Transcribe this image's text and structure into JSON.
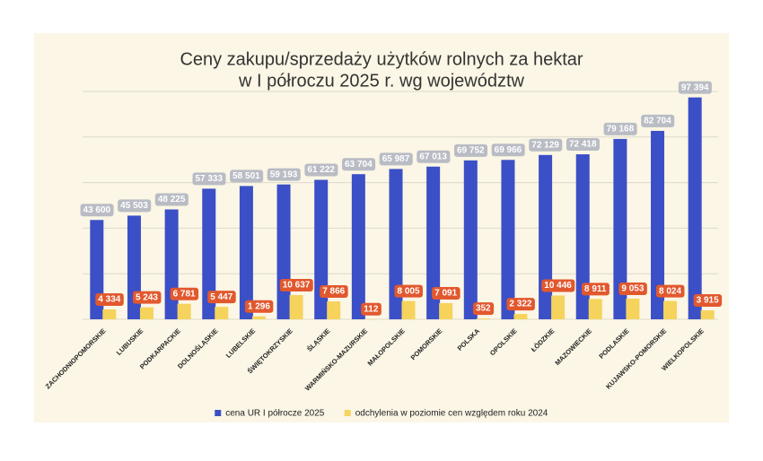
{
  "chart_data": {
    "type": "bar",
    "title": "Ceny zakupu/sprzedaży użytków rolnych za hektar",
    "subtitle": "w I półroczu 2025 r. wg województw",
    "categories": [
      "ZACHODNIOPOMORSKIE",
      "LUBUSKIE",
      "PODKARPACKIE",
      "DOLNOŚLĄSKIE",
      "LUBELSKIE",
      "ŚWIĘTOKRZYSKIE",
      "ŚLĄSKIE",
      "WARMIŃSKO-MAZURSKIE",
      "MAŁOPOLSKIE",
      "POMORSKIE",
      "POLSKA",
      "OPOLSKIE",
      "ŁÓDZKIE",
      "MAZOWIECKIE",
      "PODLASKIE",
      "KUJAWSKO-POMORSKIE",
      "WIELKOPOLSKIE"
    ],
    "series": [
      {
        "name": "cena UR I półrocze 2025",
        "color": "#3b4fc6",
        "values": [
          43600,
          45503,
          48225,
          57333,
          58501,
          59193,
          61222,
          63704,
          65987,
          67013,
          69752,
          69966,
          72129,
          72418,
          79168,
          82704,
          97394
        ],
        "value_labels": [
          "43 600",
          "45 503",
          "48 225",
          "57 333",
          "58 501",
          "59 193",
          "61 222",
          "63 704",
          "65 987",
          "67 013",
          "69 752",
          "69 966",
          "72 129",
          "72 418",
          "79 168",
          "82 704",
          "97 394"
        ],
        "label_color": "#b9bcc4"
      },
      {
        "name": "odchylenia w poziomie cen względem roku 2024",
        "color": "#f5d35c",
        "values": [
          4334,
          5243,
          6781,
          5447,
          1296,
          10637,
          7866,
          112,
          8005,
          7091,
          352,
          2322,
          10446,
          8911,
          9053,
          8024,
          3915
        ],
        "value_labels": [
          "4 334",
          "5 243",
          "6 781",
          "5 447",
          "1 296",
          "10 637",
          "7 866",
          "112",
          "8 005",
          "7 091",
          "352",
          "2 322",
          "10 446",
          "8 911",
          "9 053",
          "8 024",
          "3 915"
        ],
        "label_color": "#e2582e"
      }
    ],
    "ylim": [
      0,
      100000
    ],
    "yticks": [
      0,
      20000,
      40000,
      60000,
      80000,
      100000
    ],
    "show_ytick_labels": false,
    "grid": true,
    "legend": "bottom"
  }
}
